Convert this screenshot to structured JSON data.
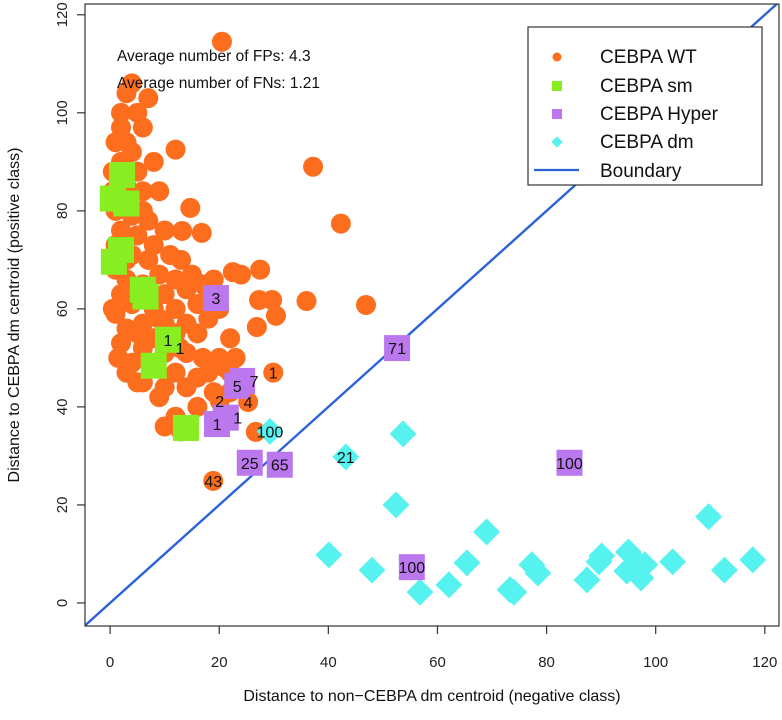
{
  "chart_data": {
    "type": "scatter",
    "title": "",
    "xlabel": "Distance to non−CEBPA dm centroid (negative class)",
    "ylabel": "Distance to CEBPA dm centroid (positive class)",
    "xlim": [
      -4.6,
      122.6
    ],
    "ylim": [
      -4.7,
      122.2
    ],
    "xticks": [
      "0",
      "20",
      "40",
      "60",
      "80",
      "100",
      "120"
    ],
    "yticks": [
      "0",
      "20",
      "40",
      "60",
      "80",
      "100",
      "120"
    ],
    "xtick_values": [
      0,
      20,
      40,
      60,
      80,
      100,
      120
    ],
    "ytick_values": [
      0,
      20,
      40,
      60,
      80,
      100,
      120
    ],
    "grid": false,
    "legend_position": "top-right",
    "annotations": [
      "Average number of FPs: 4.3",
      "Average number of FNs: 1.21"
    ],
    "boundary": {
      "name": "Boundary",
      "slope": 1,
      "intercept": 0,
      "color": "#2B63D6"
    },
    "series": [
      {
        "name": "CEBPA WT",
        "marker": "circle",
        "color": "#FC6D1E",
        "points": [
          [
            20.5,
            114.5
          ],
          [
            37.2,
            89
          ],
          [
            42.3,
            77.4
          ],
          [
            46.9,
            60.8
          ],
          [
            36,
            61.6
          ],
          [
            27.3,
            61.8
          ],
          [
            29.7,
            61.8
          ],
          [
            30.4,
            58.6
          ],
          [
            26.9,
            56.3
          ],
          [
            12,
            92.5
          ],
          [
            14.7,
            80.6
          ],
          [
            13.2,
            75.9
          ],
          [
            16.8,
            75.5
          ],
          [
            22.5,
            67.5
          ],
          [
            4,
            106
          ],
          [
            7,
            103
          ],
          [
            3,
            104
          ],
          [
            5,
            100
          ],
          [
            2,
            97
          ],
          [
            6,
            97
          ],
          [
            3,
            94
          ],
          [
            8,
            90
          ],
          [
            2,
            90
          ],
          [
            5,
            88
          ],
          [
            3,
            85
          ],
          [
            6,
            84
          ],
          [
            9,
            84
          ],
          [
            1,
            80
          ],
          [
            4,
            79
          ],
          [
            7,
            78
          ],
          [
            10,
            76
          ],
          [
            2,
            76
          ],
          [
            5,
            75
          ],
          [
            8,
            73
          ],
          [
            1,
            73
          ],
          [
            4,
            71
          ],
          [
            11,
            71
          ],
          [
            7,
            70
          ],
          [
            13,
            70
          ],
          [
            1,
            68
          ],
          [
            3,
            66
          ],
          [
            9,
            67
          ],
          [
            12,
            66
          ],
          [
            15,
            67
          ],
          [
            6,
            65
          ],
          [
            2,
            63
          ],
          [
            10,
            63
          ],
          [
            14,
            64
          ],
          [
            17,
            65
          ],
          [
            19,
            66
          ],
          [
            4,
            61
          ],
          [
            8,
            60
          ],
          [
            12,
            60
          ],
          [
            16,
            61
          ],
          [
            18,
            63
          ],
          [
            20,
            60
          ],
          [
            1,
            59
          ],
          [
            6,
            57
          ],
          [
            10,
            57
          ],
          [
            14,
            57
          ],
          [
            18,
            58
          ],
          [
            3,
            56
          ],
          [
            8,
            54
          ],
          [
            12,
            55
          ],
          [
            16,
            55
          ],
          [
            2,
            53
          ],
          [
            6,
            52
          ],
          [
            10,
            51
          ],
          [
            14,
            51
          ],
          [
            4,
            49
          ],
          [
            8,
            48
          ],
          [
            12,
            47
          ],
          [
            17,
            50
          ],
          [
            20,
            50
          ],
          [
            6,
            45
          ],
          [
            10,
            44
          ],
          [
            14,
            44
          ],
          [
            18,
            47
          ],
          [
            19,
            43
          ],
          [
            22,
            43
          ],
          [
            16,
            40
          ],
          [
            12,
            38
          ],
          [
            10,
            36
          ],
          [
            13,
            35
          ],
          [
            2,
            100
          ],
          [
            1,
            94
          ],
          [
            0.5,
            88
          ],
          [
            0.5,
            84
          ],
          [
            0.5,
            60
          ],
          [
            1.5,
            50
          ],
          [
            3,
            47
          ],
          [
            16,
            46
          ],
          [
            22,
            47
          ],
          [
            9,
            42
          ],
          [
            5,
            45
          ],
          [
            22,
            54
          ],
          [
            21,
            48
          ],
          [
            23,
            50
          ],
          [
            24,
            67
          ],
          [
            27.5,
            68
          ],
          [
            4,
            92
          ],
          [
            6,
            80
          ],
          [
            3,
            70
          ],
          [
            9,
            58
          ],
          [
            5,
            55
          ]
        ],
        "labeled_points": [
          [
            12.8,
            52,
            "1"
          ],
          [
            29.9,
            47,
            "1"
          ],
          [
            20.1,
            41.2,
            "2"
          ],
          [
            25.3,
            41,
            "4"
          ],
          [
            18.9,
            24.9,
            "43"
          ],
          [
            26.7,
            34.9,
            ""
          ]
        ]
      },
      {
        "name": "CEBPA sm",
        "marker": "square",
        "color": "#88EE22",
        "points": [
          [
            2.2,
            87.3
          ],
          [
            0.5,
            82.5
          ],
          [
            3,
            81.5
          ],
          [
            2,
            72
          ],
          [
            0.7,
            69.6
          ],
          [
            6,
            63.9
          ],
          [
            6.5,
            62.5
          ],
          [
            8,
            48.4
          ],
          [
            13.9,
            35.7
          ]
        ],
        "labeled_points": [
          [
            10.6,
            53.7,
            "1"
          ]
        ]
      },
      {
        "name": "CEBPA Hyper",
        "marker": "square",
        "color": "#BB77EE",
        "points": [],
        "labeled_points": [
          [
            19.4,
            62.2,
            "3"
          ],
          [
            52.6,
            52,
            "71"
          ],
          [
            84.2,
            28.6,
            "100"
          ],
          [
            55.3,
            7.3,
            "100"
          ],
          [
            25.6,
            28.6,
            "25"
          ],
          [
            31.1,
            28.2,
            "65"
          ],
          [
            23.3,
            44.3,
            "5"
          ],
          [
            24.2,
            45.3,
            "7"
          ],
          [
            21.2,
            37.8,
            "1"
          ],
          [
            19.6,
            36.5,
            "1"
          ]
        ]
      },
      {
        "name": "CEBPA dm",
        "marker": "diamond",
        "color": "#55F2F0",
        "points": [
          [
            53.7,
            34.5
          ],
          [
            52.4,
            20
          ],
          [
            40.1,
            9.8
          ],
          [
            48,
            6.7
          ],
          [
            56.8,
            2.2
          ],
          [
            62.1,
            3.7
          ],
          [
            65.4,
            8.2
          ],
          [
            69,
            14.5
          ],
          [
            73.3,
            2.7
          ],
          [
            74,
            2.2
          ],
          [
            77.3,
            7.8
          ],
          [
            78.4,
            6.1
          ],
          [
            87.4,
            4.7
          ],
          [
            89.6,
            8.4
          ],
          [
            90.1,
            9.6
          ],
          [
            95,
            10.4
          ],
          [
            94.7,
            6.5
          ],
          [
            97,
            7.8
          ],
          [
            97.3,
            5.1
          ],
          [
            98,
            7.8
          ],
          [
            103.1,
            8.4
          ],
          [
            109.7,
            17.6
          ],
          [
            112.6,
            6.7
          ],
          [
            117.8,
            8.8
          ]
        ],
        "labeled_points": [
          [
            29.3,
            35,
            "100"
          ],
          [
            43.2,
            29.8,
            "21"
          ]
        ]
      }
    ]
  }
}
